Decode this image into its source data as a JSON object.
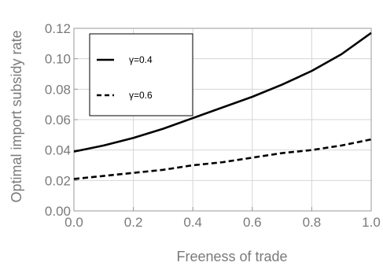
{
  "chart_data": {
    "type": "line",
    "xlabel": "Freeness of trade",
    "ylabel": "Optimal import subsidy rate",
    "xlim": [
      0.0,
      1.0
    ],
    "ylim": [
      0.0,
      0.12
    ],
    "x_ticks": [
      "0.0",
      "0.2",
      "0.4",
      "0.6",
      "0.8",
      "1.0"
    ],
    "y_ticks": [
      "0.00",
      "0.02",
      "0.04",
      "0.06",
      "0.08",
      "0.10",
      "0.12"
    ],
    "grid": true,
    "legend_position": "top-left",
    "series": [
      {
        "name": "γ=0.4",
        "style": "solid",
        "x": [
          0.0,
          0.1,
          0.2,
          0.3,
          0.4,
          0.5,
          0.6,
          0.7,
          0.8,
          0.9,
          1.0
        ],
        "y": [
          0.039,
          0.043,
          0.048,
          0.054,
          0.061,
          0.068,
          0.075,
          0.083,
          0.092,
          0.103,
          0.117
        ]
      },
      {
        "name": "γ=0.6",
        "style": "dashed",
        "x": [
          0.0,
          0.1,
          0.2,
          0.3,
          0.4,
          0.5,
          0.6,
          0.7,
          0.8,
          0.9,
          1.0
        ],
        "y": [
          0.021,
          0.023,
          0.025,
          0.027,
          0.03,
          0.032,
          0.035,
          0.038,
          0.04,
          0.043,
          0.047
        ]
      }
    ]
  }
}
